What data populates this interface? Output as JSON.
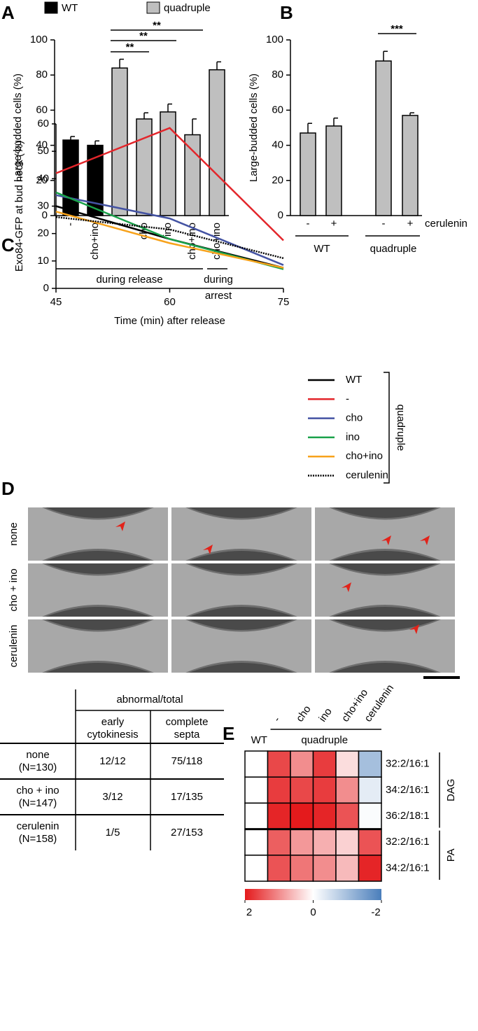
{
  "panel_labels": [
    "A",
    "B",
    "C",
    "D",
    "E"
  ],
  "chart_data": [
    {
      "type": "bar",
      "ylabel": "Large-budded cells (%)",
      "legend": [
        {
          "name": "WT",
          "color": "#000000"
        },
        {
          "name": "quadruple",
          "color": "#bfbfbf"
        }
      ],
      "categories": [
        "-",
        "cho+ino",
        "-",
        "cho",
        "ino",
        "cho+ino",
        "cho+ino"
      ],
      "values": [
        43,
        40,
        84,
        55,
        59,
        46,
        83
      ],
      "errors": [
        2,
        2.5,
        5,
        3.5,
        4.5,
        9,
        4.5
      ],
      "colors": [
        "#000000",
        "#000000",
        "#bfbfbf",
        "#bfbfbf",
        "#bfbfbf",
        "#bfbfbf",
        "#bfbfbf"
      ],
      "ylim": [
        0,
        100
      ],
      "yticks": [
        0,
        20,
        40,
        60,
        80,
        100
      ],
      "groups": [
        [
          "during release"
        ],
        [
          "during",
          "arrest"
        ]
      ],
      "significance": [
        "**",
        "**",
        "**"
      ]
    },
    {
      "type": "bar",
      "ylabel": "Large-budded cells (%)",
      "categories": [
        "-",
        "+",
        "-",
        "+"
      ],
      "category_title": "cerulenin",
      "values": [
        47,
        51,
        88,
        57
      ],
      "errors": [
        5.5,
        4.5,
        5.5,
        1.5
      ],
      "colors": [
        "#bfbfbf",
        "#bfbfbf",
        "#bfbfbf",
        "#bfbfbf"
      ],
      "ylim": [
        0,
        100
      ],
      "yticks": [
        0,
        20,
        40,
        60,
        80,
        100
      ],
      "groups": [
        [
          "WT"
        ],
        [
          "quadruple"
        ]
      ],
      "significance": [
        "***"
      ]
    },
    {
      "type": "line",
      "xlabel": "Time (min) after release",
      "ylabel": "Exo84-GFP at bud neck (%)",
      "x": [
        45,
        60,
        75
      ],
      "xlim": [
        45,
        75
      ],
      "xticks": [
        45,
        60,
        75
      ],
      "ylim": [
        0,
        60
      ],
      "yticks": [
        0,
        10,
        20,
        30,
        40,
        50,
        60
      ],
      "series": [
        {
          "name": "WT",
          "color": "#000000",
          "values": [
            30,
            18,
            7.5
          ]
        },
        {
          "name": "-",
          "color": "#e3262b",
          "values": [
            42,
            58.5,
            17.5
          ]
        },
        {
          "name": "cho",
          "color": "#4453a3",
          "values": [
            34,
            25.5,
            8.5
          ]
        },
        {
          "name": "ino",
          "color": "#1aa24a",
          "values": [
            35,
            18,
            7
          ]
        },
        {
          "name": "cho+ino",
          "color": "#f7a21b",
          "values": [
            28,
            16.5,
            7.5
          ]
        },
        {
          "name": "cerulenin",
          "color": "#000000",
          "dash": "dotted",
          "values": [
            26,
            21.5,
            11
          ]
        }
      ],
      "legend_group": "quadruple"
    },
    {
      "type": "heatmap",
      "columns": [
        "WT",
        "-",
        "cho",
        "ino",
        "cho+ino",
        "cerulenin"
      ],
      "column_group": "quadruple",
      "rows": [
        "32:2/16:1",
        "34:2/16:1",
        "36:2/18:1",
        "32:2/16:1",
        "34:2/16:1"
      ],
      "row_groups": [
        "DAG",
        "PA"
      ],
      "values": [
        [
          0,
          1.6,
          1.0,
          1.7,
          0.3,
          -1.0
        ],
        [
          0,
          1.7,
          1.6,
          1.7,
          1.0,
          -0.3
        ],
        [
          0,
          1.9,
          2.0,
          1.9,
          1.5,
          -0.05
        ],
        [
          0,
          1.4,
          0.9,
          0.7,
          0.4,
          1.5
        ],
        [
          0,
          1.5,
          1.2,
          1.0,
          0.6,
          1.9
        ]
      ],
      "clim": [
        -2,
        2
      ],
      "cticks": [
        2,
        0,
        -2
      ],
      "colors": {
        "high": "#e41a1c",
        "mid": "#ffffff",
        "low": "#4a7ebb"
      }
    }
  ],
  "micrographs": {
    "rows": [
      "none",
      "cho + ino",
      "cerulenin"
    ]
  },
  "table": {
    "header": "abnormal/total",
    "columns": [
      [
        "early",
        "cytokinesis"
      ],
      [
        "complete",
        "septa"
      ]
    ],
    "rows": [
      {
        "label": [
          "none",
          "(N=130)"
        ],
        "cells": [
          "12/12",
          "75/118"
        ]
      },
      {
        "label": [
          "cho + ino",
          "(N=147)"
        ],
        "cells": [
          "3/12",
          "17/135"
        ]
      },
      {
        "label": [
          "cerulenin",
          "(N=158)"
        ],
        "cells": [
          "1/5",
          "27/153"
        ]
      }
    ]
  }
}
